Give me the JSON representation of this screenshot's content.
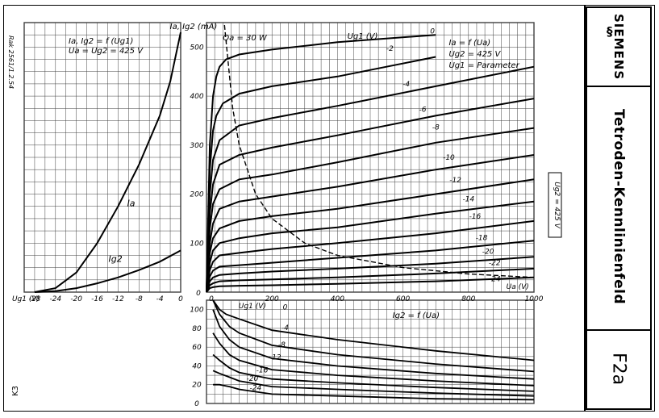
{
  "catalog_text": "Rak 2561/1.2.54",
  "sheet_code": "K3",
  "brand": "SIEMENS",
  "title": "Tetroden-Kennlinienfeld",
  "code": "F2a",
  "colors": {
    "ink": "#000000",
    "grid": "#000000",
    "paper": "#ffffff"
  },
  "icon": "siemens-logo-icon",
  "chart_data": [
    {
      "type": "line",
      "title_lines": [
        "Ia, Ig2 = f (Ug1)",
        "Ua = Ug2 = 425 V"
      ],
      "xlabel": "Ug1 (V)",
      "xlim": [
        -30,
        0
      ],
      "xticks": [
        -28,
        -24,
        -20,
        -16,
        -12,
        -8,
        -4,
        0
      ],
      "xtick_labels": [
        "-28",
        "-24",
        "-20",
        "-16",
        "-12",
        "-8",
        "-4",
        "0"
      ],
      "ylim": [
        0,
        550
      ],
      "grid": true,
      "series": [
        {
          "name": "Ia",
          "x": [
            -28,
            -24,
            -20,
            -16,
            -12,
            -8,
            -4,
            -2,
            0
          ],
          "y": [
            0,
            8,
            40,
            100,
            175,
            260,
            360,
            430,
            530
          ]
        },
        {
          "name": "Ig2",
          "x": [
            -28,
            -24,
            -20,
            -16,
            -12,
            -8,
            -4,
            0
          ],
          "y": [
            0,
            2,
            8,
            18,
            30,
            45,
            62,
            85
          ]
        }
      ]
    },
    {
      "type": "line",
      "title_lines": [
        "Ia = f (Ua)",
        "Ug2 = 425 V",
        "Ug1 = Parameter"
      ],
      "ylabel": "Ia, Ig2 (mA)",
      "xlabel": "Ua (V)",
      "xlim": [
        0,
        1000
      ],
      "ylim": [
        0,
        550
      ],
      "xticks": [
        0,
        200,
        400,
        600,
        800,
        1000
      ],
      "yticks": [
        0,
        100,
        200,
        300,
        400,
        500
      ],
      "grid": true,
      "param_label": "Ug1 (V)",
      "annotation": "Qa = 30 W",
      "boxed_label": "Ug2 = 425 V",
      "series": [
        {
          "name": "0",
          "x": [
            0,
            10,
            20,
            30,
            40,
            60,
            100,
            200,
            400,
            700
          ],
          "y": [
            0,
            300,
            400,
            440,
            460,
            475,
            485,
            495,
            510,
            525
          ]
        },
        {
          "name": "-2",
          "x": [
            0,
            10,
            20,
            30,
            50,
            100,
            200,
            400,
            700
          ],
          "y": [
            0,
            250,
            330,
            360,
            385,
            405,
            420,
            440,
            480
          ]
        },
        {
          "name": "-4",
          "x": [
            0,
            10,
            20,
            40,
            100,
            200,
            400,
            700,
            1000
          ],
          "y": [
            0,
            200,
            270,
            310,
            340,
            355,
            380,
            420,
            460
          ]
        },
        {
          "name": "-6",
          "x": [
            0,
            10,
            20,
            40,
            100,
            200,
            400,
            700,
            1000
          ],
          "y": [
            0,
            160,
            220,
            260,
            280,
            295,
            320,
            360,
            395
          ]
        },
        {
          "name": "-8",
          "x": [
            0,
            10,
            20,
            40,
            100,
            200,
            400,
            700,
            1000
          ],
          "y": [
            0,
            130,
            180,
            210,
            230,
            240,
            265,
            305,
            335
          ]
        },
        {
          "name": "-10",
          "x": [
            0,
            10,
            20,
            40,
            100,
            200,
            400,
            700,
            1000
          ],
          "y": [
            0,
            100,
            140,
            170,
            185,
            195,
            215,
            250,
            280
          ]
        },
        {
          "name": "-12",
          "x": [
            0,
            10,
            20,
            40,
            100,
            200,
            400,
            700,
            1000
          ],
          "y": [
            0,
            80,
            110,
            130,
            145,
            155,
            170,
            200,
            230
          ]
        },
        {
          "name": "-14",
          "x": [
            0,
            10,
            20,
            40,
            100,
            200,
            400,
            700,
            1000
          ],
          "y": [
            0,
            60,
            85,
            100,
            110,
            120,
            132,
            160,
            185
          ]
        },
        {
          "name": "-16",
          "x": [
            0,
            10,
            20,
            40,
            100,
            200,
            400,
            700,
            1000
          ],
          "y": [
            0,
            45,
            62,
            75,
            80,
            88,
            100,
            120,
            145
          ]
        },
        {
          "name": "-18",
          "x": [
            0,
            10,
            20,
            40,
            100,
            200,
            400,
            700,
            1000
          ],
          "y": [
            0,
            32,
            44,
            52,
            55,
            60,
            70,
            85,
            105
          ]
        },
        {
          "name": "-20",
          "x": [
            0,
            10,
            20,
            40,
            100,
            200,
            400,
            700,
            1000
          ],
          "y": [
            0,
            22,
            30,
            35,
            38,
            42,
            48,
            58,
            72
          ]
        },
        {
          "name": "-22",
          "x": [
            0,
            10,
            20,
            40,
            100,
            200,
            400,
            700,
            1000
          ],
          "y": [
            0,
            14,
            18,
            22,
            24,
            26,
            30,
            38,
            48
          ]
        },
        {
          "name": "-24",
          "x": [
            0,
            10,
            20,
            40,
            100,
            200,
            400,
            700,
            1000
          ],
          "y": [
            0,
            8,
            10,
            12,
            13,
            14,
            17,
            22,
            30
          ]
        }
      ],
      "power_curve": {
        "name": "Qa = 30 W",
        "x": [
          55,
          80,
          100,
          150,
          200,
          300,
          400,
          600,
          800,
          1000
        ],
        "y": [
          545,
          375,
          300,
          200,
          150,
          100,
          75,
          50,
          37,
          30
        ]
      }
    },
    {
      "type": "line",
      "title_lines": [
        "Ig2 = f (Ua)"
      ],
      "ylabel": "Ig2 (mA)",
      "param_label": "Ug1 (V)",
      "xlim": [
        0,
        1000
      ],
      "ylim": [
        0,
        110
      ],
      "yticks": [
        0,
        20,
        40,
        60,
        80,
        100
      ],
      "grid": true,
      "series": [
        {
          "name": "0",
          "x": [
            20,
            40,
            60,
            100,
            200,
            400,
            700,
            1000
          ],
          "y": [
            110,
            100,
            95,
            90,
            78,
            68,
            56,
            46
          ]
        },
        {
          "name": "-4",
          "x": [
            20,
            40,
            70,
            100,
            200,
            400,
            700,
            1000
          ],
          "y": [
            110,
            95,
            82,
            75,
            62,
            52,
            42,
            34
          ]
        },
        {
          "name": "-8",
          "x": [
            20,
            40,
            70,
            100,
            200,
            400,
            700,
            1000
          ],
          "y": [
            100,
            82,
            68,
            60,
            48,
            40,
            32,
            26
          ]
        },
        {
          "name": "-12",
          "x": [
            20,
            40,
            70,
            100,
            200,
            400,
            700,
            1000
          ],
          "y": [
            75,
            64,
            52,
            46,
            36,
            30,
            24,
            19
          ]
        },
        {
          "name": "-16",
          "x": [
            20,
            40,
            70,
            100,
            200,
            400,
            700,
            1000
          ],
          "y": [
            52,
            46,
            38,
            33,
            26,
            22,
            17,
            13
          ]
        },
        {
          "name": "-20",
          "x": [
            20,
            40,
            70,
            100,
            200,
            400,
            700,
            1000
          ],
          "y": [
            35,
            32,
            28,
            24,
            18,
            15,
            11,
            8
          ]
        },
        {
          "name": "-24",
          "x": [
            20,
            40,
            70,
            100,
            200,
            400,
            700,
            1000
          ],
          "y": [
            20,
            20,
            18,
            15,
            10,
            8,
            5,
            4
          ]
        }
      ]
    }
  ]
}
